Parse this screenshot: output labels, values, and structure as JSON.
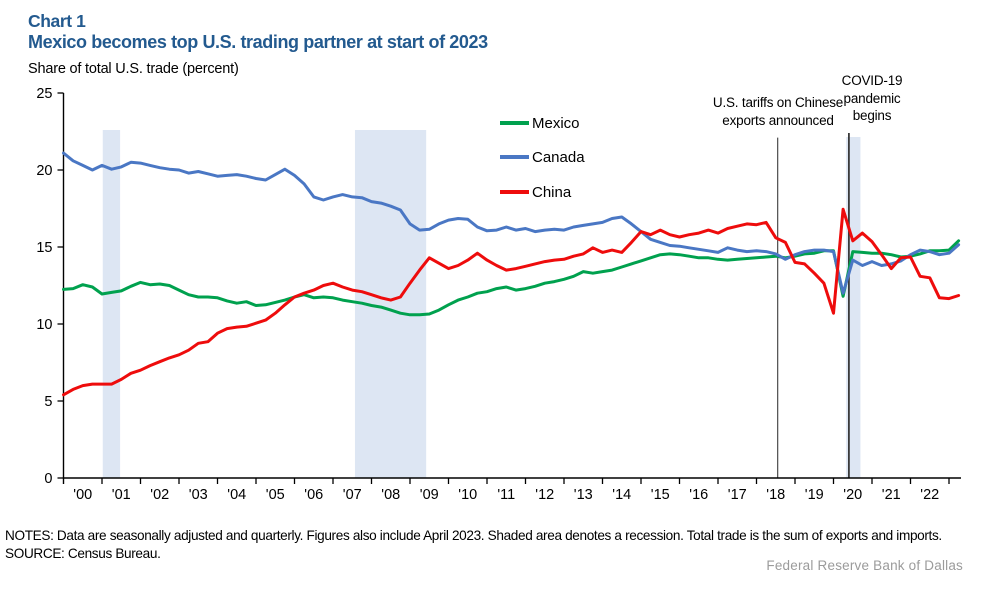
{
  "header": {
    "chart_label": "Chart 1",
    "title": "Mexico becomes top U.S. trading partner at start of 2023",
    "axis_note": "Share of total U.S. trade (percent)",
    "title_color": "#235a8f"
  },
  "legend": [
    {
      "label": "Mexico",
      "color": "#00a14e"
    },
    {
      "label": "Canada",
      "color": "#4a77c4"
    },
    {
      "label": "China",
      "color": "#ee0c0c"
    }
  ],
  "annotations": {
    "tariffs": {
      "line1": "U.S. tariffs on Chinese",
      "line2": "exports announced",
      "year": 2018.55,
      "line_top_value": 22.1
    },
    "covid": {
      "line1": "COVID-19",
      "line2": "pandemic",
      "line3": "begins",
      "year": 2020.4,
      "line_top_value": 22.4
    }
  },
  "footer": {
    "notes": "NOTES: Data are seasonally adjusted and quarterly. Figures also include April 2023. Shaded area denotes a recession. Total trade is the sum of exports and imports.",
    "source": "SOURCE: Census Bureau.",
    "brand": "Federal Reserve Bank of Dallas"
  },
  "chart_data": {
    "type": "line",
    "title": "Mexico becomes top U.S. trading partner at start of 2023",
    "ylabel": "Share of total U.S. trade (percent)",
    "x_start": 2000.0,
    "x_step": 0.25,
    "x_end_label_note": "quarterly through April 2023",
    "ylim": [
      0,
      25
    ],
    "yticks": [
      0,
      5,
      10,
      15,
      20,
      25
    ],
    "xtick_years": [
      2001,
      2002,
      2003,
      2004,
      2005,
      2006,
      2007,
      2008,
      2009,
      2010,
      2011,
      2012,
      2013,
      2014,
      2015,
      2016,
      2017,
      2018,
      2019,
      2020,
      2021,
      2022,
      2023
    ],
    "xtick_labels": [
      "'00",
      "'01",
      "'02",
      "'03",
      "'04",
      "'05",
      "'06",
      "'07",
      "'08",
      "'09",
      "'10",
      "'11",
      "'12",
      "'13",
      "'14",
      "'15",
      "'16",
      "'17",
      "'18",
      "'19",
      "'20",
      "'21",
      "'22"
    ],
    "grid": false,
    "legend_position": "inside-top",
    "recession_bands": [
      [
        2001.02,
        2001.47
      ],
      [
        2007.57,
        2009.42
      ],
      [
        2020.33,
        2020.7
      ]
    ],
    "band_color": "#dde6f3",
    "series": [
      {
        "name": "Mexico",
        "color": "#00a14e",
        "values": [
          12.25,
          12.3,
          12.55,
          12.4,
          11.95,
          12.05,
          12.15,
          12.45,
          12.7,
          12.55,
          12.6,
          12.5,
          12.2,
          11.9,
          11.75,
          11.75,
          11.7,
          11.5,
          11.35,
          11.45,
          11.2,
          11.25,
          11.4,
          11.55,
          11.75,
          11.9,
          11.7,
          11.75,
          11.7,
          11.55,
          11.45,
          11.35,
          11.2,
          11.1,
          10.9,
          10.7,
          10.6,
          10.6,
          10.65,
          10.9,
          11.25,
          11.55,
          11.75,
          12.0,
          12.1,
          12.3,
          12.4,
          12.2,
          12.3,
          12.45,
          12.65,
          12.75,
          12.9,
          13.1,
          13.4,
          13.3,
          13.4,
          13.5,
          13.7,
          13.9,
          14.1,
          14.3,
          14.5,
          14.55,
          14.5,
          14.4,
          14.3,
          14.3,
          14.2,
          14.15,
          14.2,
          14.25,
          14.3,
          14.35,
          14.4,
          14.3,
          14.4,
          14.55,
          14.6,
          14.75,
          14.75,
          11.8,
          14.7,
          14.65,
          14.6,
          14.6,
          14.5,
          14.35,
          14.4,
          14.55,
          14.75,
          14.75,
          14.8,
          15.4
        ]
      },
      {
        "name": "Canada",
        "color": "#4a77c4",
        "values": [
          21.1,
          20.6,
          20.3,
          20.0,
          20.3,
          20.05,
          20.2,
          20.5,
          20.45,
          20.3,
          20.15,
          20.05,
          20.0,
          19.8,
          19.9,
          19.75,
          19.6,
          19.65,
          19.7,
          19.6,
          19.45,
          19.35,
          19.7,
          20.05,
          19.65,
          19.1,
          18.25,
          18.05,
          18.25,
          18.4,
          18.25,
          18.2,
          17.95,
          17.85,
          17.65,
          17.4,
          16.5,
          16.1,
          16.15,
          16.5,
          16.75,
          16.85,
          16.8,
          16.3,
          16.05,
          16.1,
          16.3,
          16.1,
          16.2,
          16.0,
          16.1,
          16.15,
          16.1,
          16.3,
          16.4,
          16.5,
          16.6,
          16.85,
          16.95,
          16.5,
          16.0,
          15.5,
          15.3,
          15.1,
          15.05,
          14.95,
          14.85,
          14.75,
          14.65,
          14.95,
          14.8,
          14.7,
          14.75,
          14.7,
          14.55,
          14.2,
          14.5,
          14.7,
          14.8,
          14.8,
          14.7,
          12.0,
          14.15,
          13.8,
          14.05,
          13.8,
          13.9,
          14.1,
          14.5,
          14.8,
          14.7,
          14.5,
          14.6,
          15.15
        ]
      },
      {
        "name": "China",
        "color": "#ee0c0c",
        "values": [
          5.4,
          5.75,
          6.0,
          6.1,
          6.1,
          6.1,
          6.4,
          6.8,
          7.0,
          7.3,
          7.55,
          7.8,
          8.0,
          8.3,
          8.75,
          8.85,
          9.4,
          9.7,
          9.8,
          9.85,
          10.05,
          10.25,
          10.7,
          11.25,
          11.75,
          12.0,
          12.2,
          12.5,
          12.65,
          12.4,
          12.2,
          12.1,
          11.9,
          11.7,
          11.55,
          11.75,
          12.65,
          13.5,
          14.3,
          13.95,
          13.6,
          13.8,
          14.15,
          14.6,
          14.15,
          13.8,
          13.5,
          13.6,
          13.75,
          13.9,
          14.05,
          14.15,
          14.2,
          14.4,
          14.55,
          14.95,
          14.65,
          14.8,
          14.65,
          15.3,
          16.0,
          15.8,
          16.1,
          15.8,
          15.65,
          15.8,
          15.9,
          16.1,
          15.9,
          16.2,
          16.35,
          16.5,
          16.45,
          16.6,
          15.6,
          15.3,
          14.0,
          13.9,
          13.3,
          12.65,
          10.7,
          17.45,
          15.4,
          15.9,
          15.35,
          14.5,
          13.6,
          14.3,
          14.35,
          13.1,
          13.0,
          11.7,
          11.65,
          11.85
        ]
      }
    ]
  }
}
